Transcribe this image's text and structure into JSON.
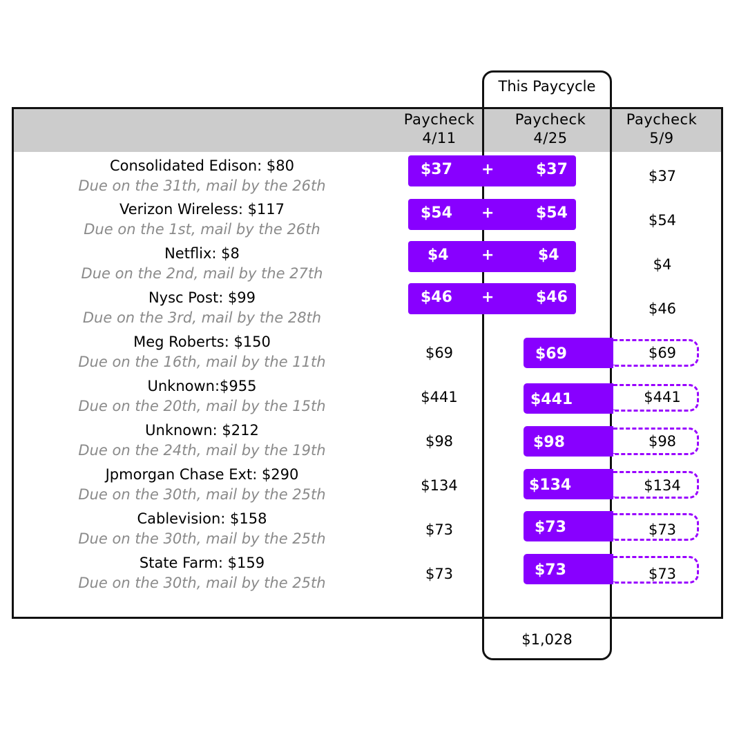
{
  "cycle_label": "This Paycycle",
  "columns": [
    {
      "title": "Paycheck",
      "date": "4/11"
    },
    {
      "title": "Paycheck",
      "date": "4/25"
    },
    {
      "title": "Paycheck",
      "date": "5/9"
    }
  ],
  "split_symbol": "+",
  "bills": [
    {
      "name": "Consolidated Edison: $80",
      "due": "Due on the 31th, mail by the 26th",
      "p1": "$37",
      "p2": "$37",
      "p3": "$37"
    },
    {
      "name": "Verizon Wireless: $117",
      "due": "Due on the 1st, mail by the 26th",
      "p1": "$54",
      "p2": "$54",
      "p3": "$54"
    },
    {
      "name": "Netflix: $8",
      "due": "Due on the 2nd, mail by the 27th",
      "p1": "$4",
      "p2": "$4",
      "p3": "$4"
    },
    {
      "name": "Nysc Post: $99",
      "due": "Due on the 3rd, mail by the 28th",
      "p1": "$46",
      "p2": "$46",
      "p3": "$46"
    },
    {
      "name": "Meg Roberts: $150",
      "due": "Due on the 16th, mail by the 11th",
      "p1": "$69",
      "p2": "$69",
      "p3": "$69"
    },
    {
      "name": "Unknown:$955",
      "due": "Due on the 20th, mail by the 15th",
      "p1": "$441",
      "p2": "$441",
      "p3": "$441"
    },
    {
      "name": "Unknown: $212",
      "due": "Due on the 24th, mail by the 19th",
      "p1": "$98",
      "p2": "$98",
      "p3": "$98"
    },
    {
      "name": "Jpmorgan Chase Ext: $290",
      "due": "Due on the 30th, mail by the 25th",
      "p1": "$134",
      "p2": "$134",
      "p3": "$134"
    },
    {
      "name": "Cablevision: $158",
      "due": "Due on the 30th, mail by the 25th",
      "p1": "$73",
      "p2": "$73",
      "p3": "$73"
    },
    {
      "name": "State Farm: $159",
      "due": "Due on the 30th, mail by the 25th",
      "p1": "$73",
      "p2": "$73",
      "p3": "$73"
    }
  ],
  "total": "$1,028",
  "colors": {
    "accent": "#8800ff",
    "muted_text": "#8a8a8a",
    "header_bg": "#cccccc"
  }
}
